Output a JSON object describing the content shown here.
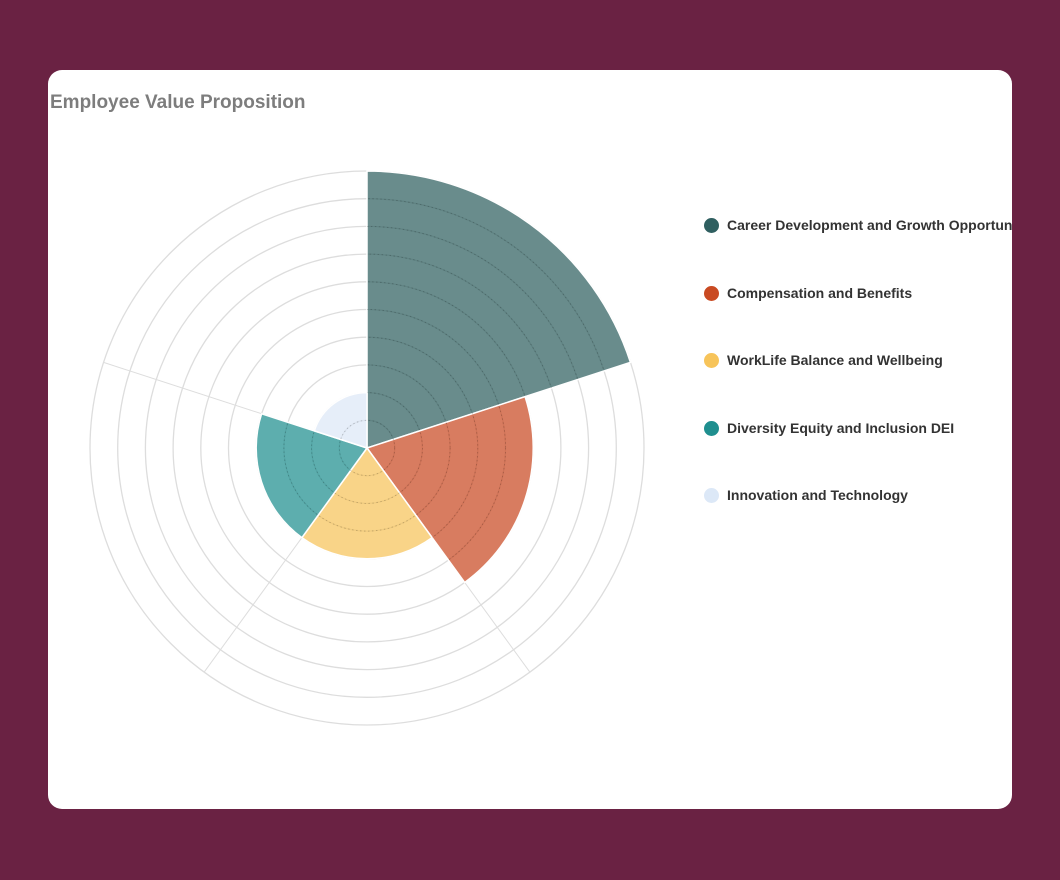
{
  "page": {
    "background_color": "#6a2243",
    "card_color": "#ffffff"
  },
  "chart_data": {
    "type": "polar-area",
    "title": "Employee Value Proposition",
    "categories": [
      "Career Development and Growth Opportunities",
      "Compensation and Benefits",
      "WorkLife Balance and Wellbeing",
      "Diversity Equity and Inclusion DEI",
      "Innovation and Technology"
    ],
    "values": [
      10,
      6,
      4,
      4,
      2
    ],
    "colors": [
      "#2f5f60",
      "#c94a22",
      "#f7c45a",
      "#1f8f8f",
      "#dce8f7"
    ],
    "rlim": [
      0,
      10
    ],
    "grid_rings": 10,
    "grid": true,
    "legend_position": "right"
  }
}
